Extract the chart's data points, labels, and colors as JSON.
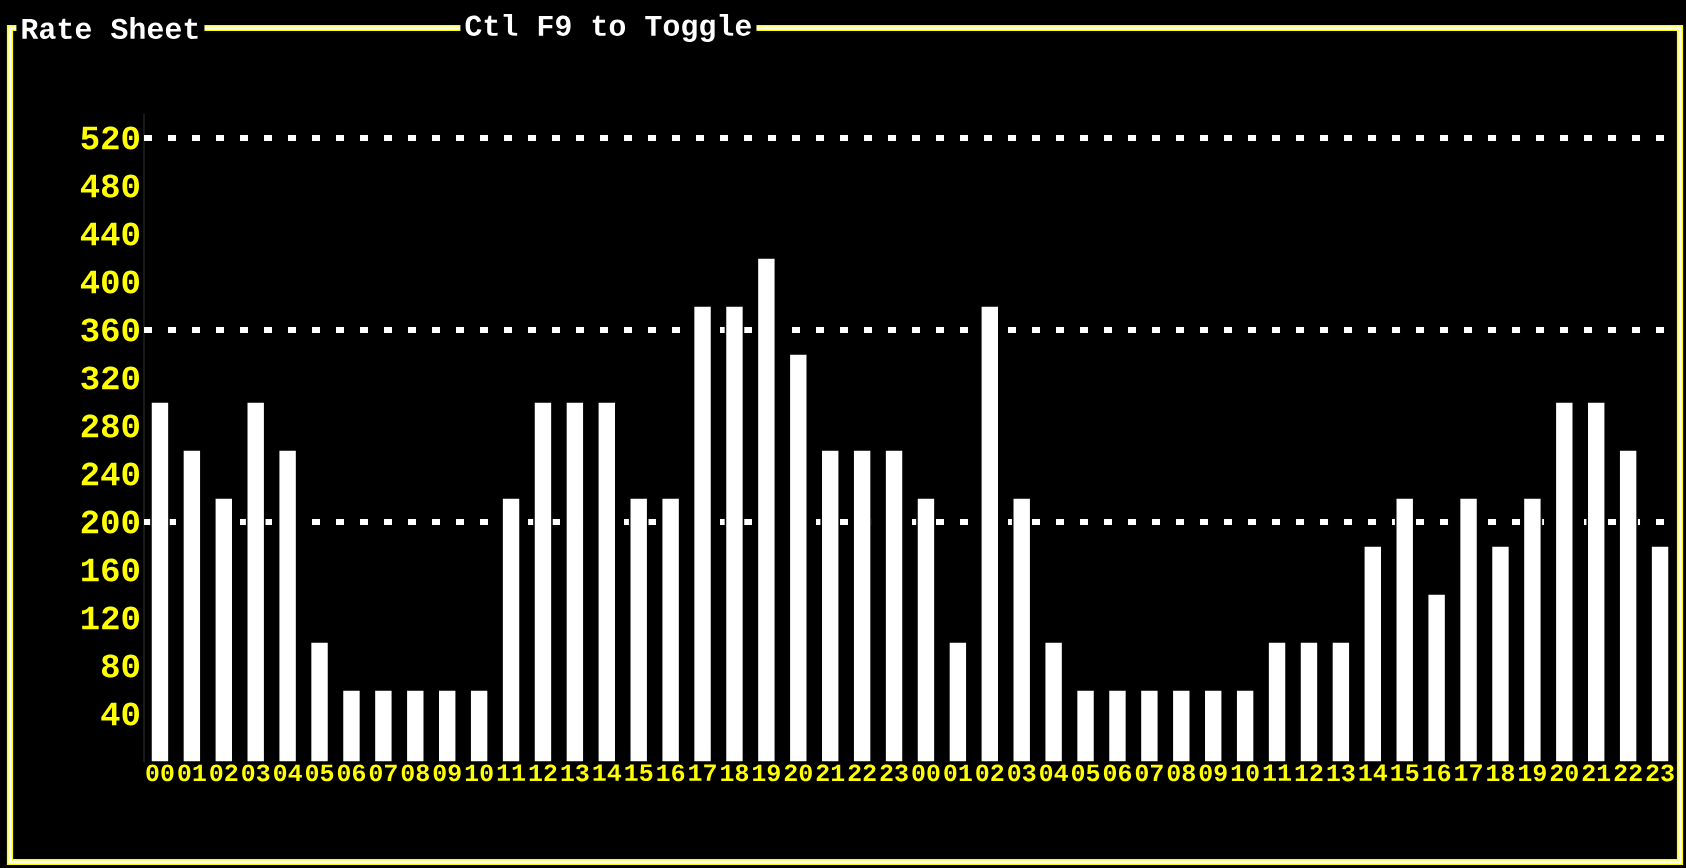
{
  "chart_data": {
    "type": "bar",
    "title": "Rate Sheet",
    "subtitle": "Ctl F9 to Toggle",
    "categories": [
      "00",
      "01",
      "02",
      "03",
      "04",
      "05",
      "06",
      "07",
      "08",
      "09",
      "10",
      "11",
      "12",
      "13",
      "14",
      "15",
      "16",
      "17",
      "18",
      "19",
      "20",
      "21",
      "22",
      "23",
      "00",
      "01",
      "02",
      "03",
      "04",
      "05",
      "06",
      "07",
      "08",
      "09",
      "10",
      "11",
      "12",
      "13",
      "14",
      "15",
      "16",
      "17",
      "18",
      "19",
      "20",
      "21",
      "22",
      "23"
    ],
    "values": [
      300,
      260,
      220,
      300,
      260,
      100,
      60,
      60,
      60,
      60,
      60,
      220,
      300,
      300,
      300,
      220,
      220,
      380,
      380,
      420,
      340,
      260,
      260,
      260,
      220,
      100,
      380,
      220,
      100,
      60,
      60,
      60,
      60,
      60,
      60,
      100,
      100,
      100,
      180,
      220,
      140,
      220,
      180,
      220,
      300,
      300,
      260,
      180
    ],
    "color": "#ffffff",
    "ylim": [
      0,
      540
    ],
    "yticks": [
      40,
      80,
      120,
      160,
      200,
      240,
      280,
      320,
      360,
      400,
      440,
      480,
      520
    ],
    "ref_lines": [
      {
        "axis": "y",
        "value": 520,
        "color": "#ffffff",
        "line_style": "dotted"
      },
      {
        "axis": "y",
        "value": 360,
        "color": "#ffffff",
        "line_style": "dotted"
      },
      {
        "axis": "y",
        "value": 200,
        "color": "#ffffff",
        "line_style": "dotted"
      }
    ],
    "tick_labels": "xy"
  }
}
